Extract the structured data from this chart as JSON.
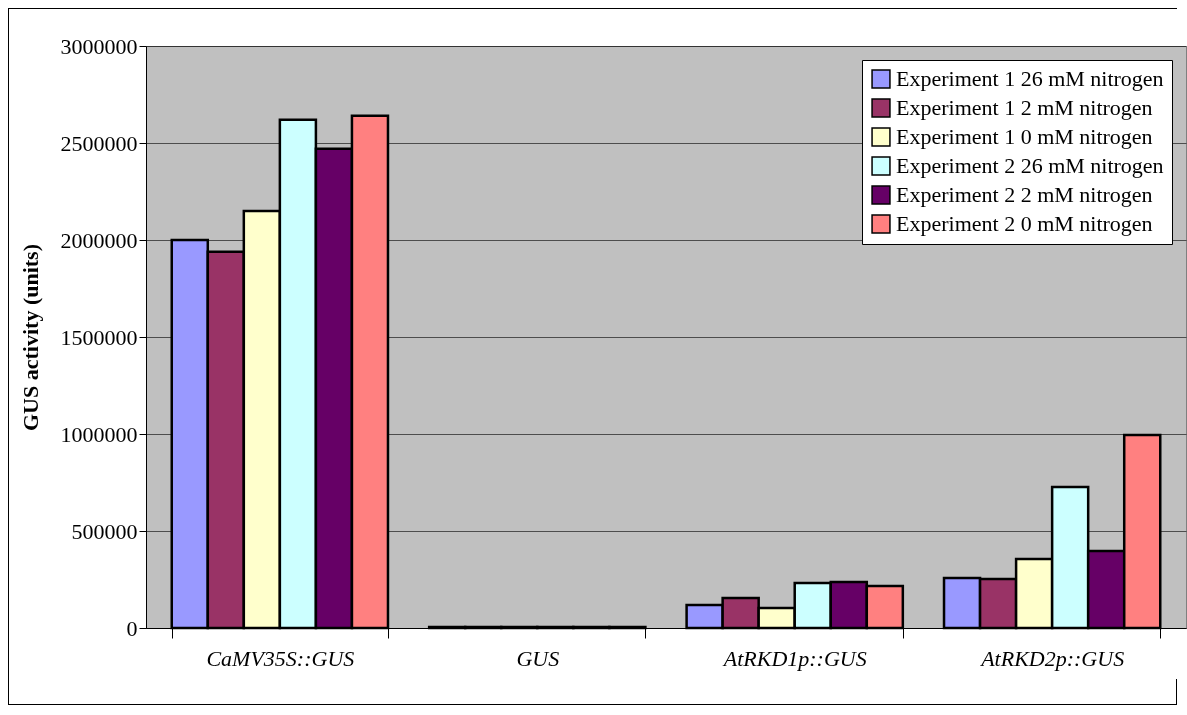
{
  "chart_data": {
    "type": "bar",
    "ylabel": "GUS activity (units)",
    "categories": [
      "CaMV35S::GUS",
      "GUS",
      "AtRKD1p::GUS",
      "AtRKD2p::GUS"
    ],
    "series": [
      {
        "name": "Experiment 1 26 mM nitrogen",
        "color": "#9999ff",
        "values": [
          2000000,
          5000,
          118000,
          258000
        ]
      },
      {
        "name": "Experiment 1 2 mM nitrogen",
        "color": "#993366",
        "values": [
          1940000,
          5000,
          155000,
          253000
        ]
      },
      {
        "name": "Experiment 1 0 mM nitrogen",
        "color": "#ffffcc",
        "values": [
          2150000,
          5000,
          103000,
          356000
        ]
      },
      {
        "name": "Experiment 2 26 mM nitrogen",
        "color": "#ccffff",
        "values": [
          2620000,
          5000,
          232000,
          727000
        ]
      },
      {
        "name": "Experiment 2 2 mM nitrogen",
        "color": "#660066",
        "values": [
          2470000,
          5000,
          237000,
          397000
        ]
      },
      {
        "name": "Experiment 2 0 mM nitrogen",
        "color": "#ff8080",
        "values": [
          2640000,
          5000,
          216000,
          995000
        ]
      }
    ],
    "ylim": [
      0,
      3000000
    ],
    "yticks": [
      0,
      500000,
      1000000,
      1500000,
      2000000,
      2500000,
      3000000
    ],
    "grid": "y",
    "legend": "top right"
  }
}
